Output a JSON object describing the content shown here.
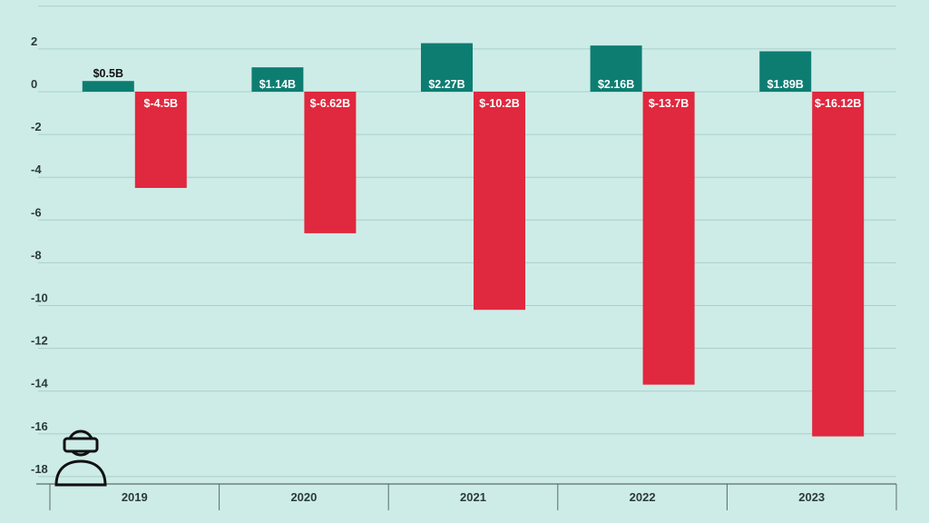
{
  "chart_data": {
    "type": "bar",
    "categories": [
      "2019",
      "2020",
      "2021",
      "2022",
      "2023"
    ],
    "series": [
      {
        "values": [
          0.5,
          1.14,
          2.27,
          2.16,
          1.89
        ],
        "color": "#0d7d72"
      },
      {
        "values": [
          -4.5,
          -6.62,
          -10.2,
          -13.7,
          -16.12
        ],
        "color": "#e0283e"
      }
    ],
    "data_labels": [
      [
        "$0.5B",
        "$1.14B",
        "$2.27B",
        "$2.16B",
        "$1.89B"
      ],
      [
        "$-4.5B",
        "$-6.62B",
        "$-10.2B",
        "$-13.7B",
        "$-16.12B"
      ]
    ],
    "yticks": [
      2,
      0,
      -2,
      -4,
      -6,
      -8,
      -10,
      -12,
      -14,
      -16,
      -18
    ],
    "ylim": [
      -18.5,
      4
    ],
    "grid": true,
    "legend": "none"
  },
  "icon": "vr-headset-person-icon"
}
